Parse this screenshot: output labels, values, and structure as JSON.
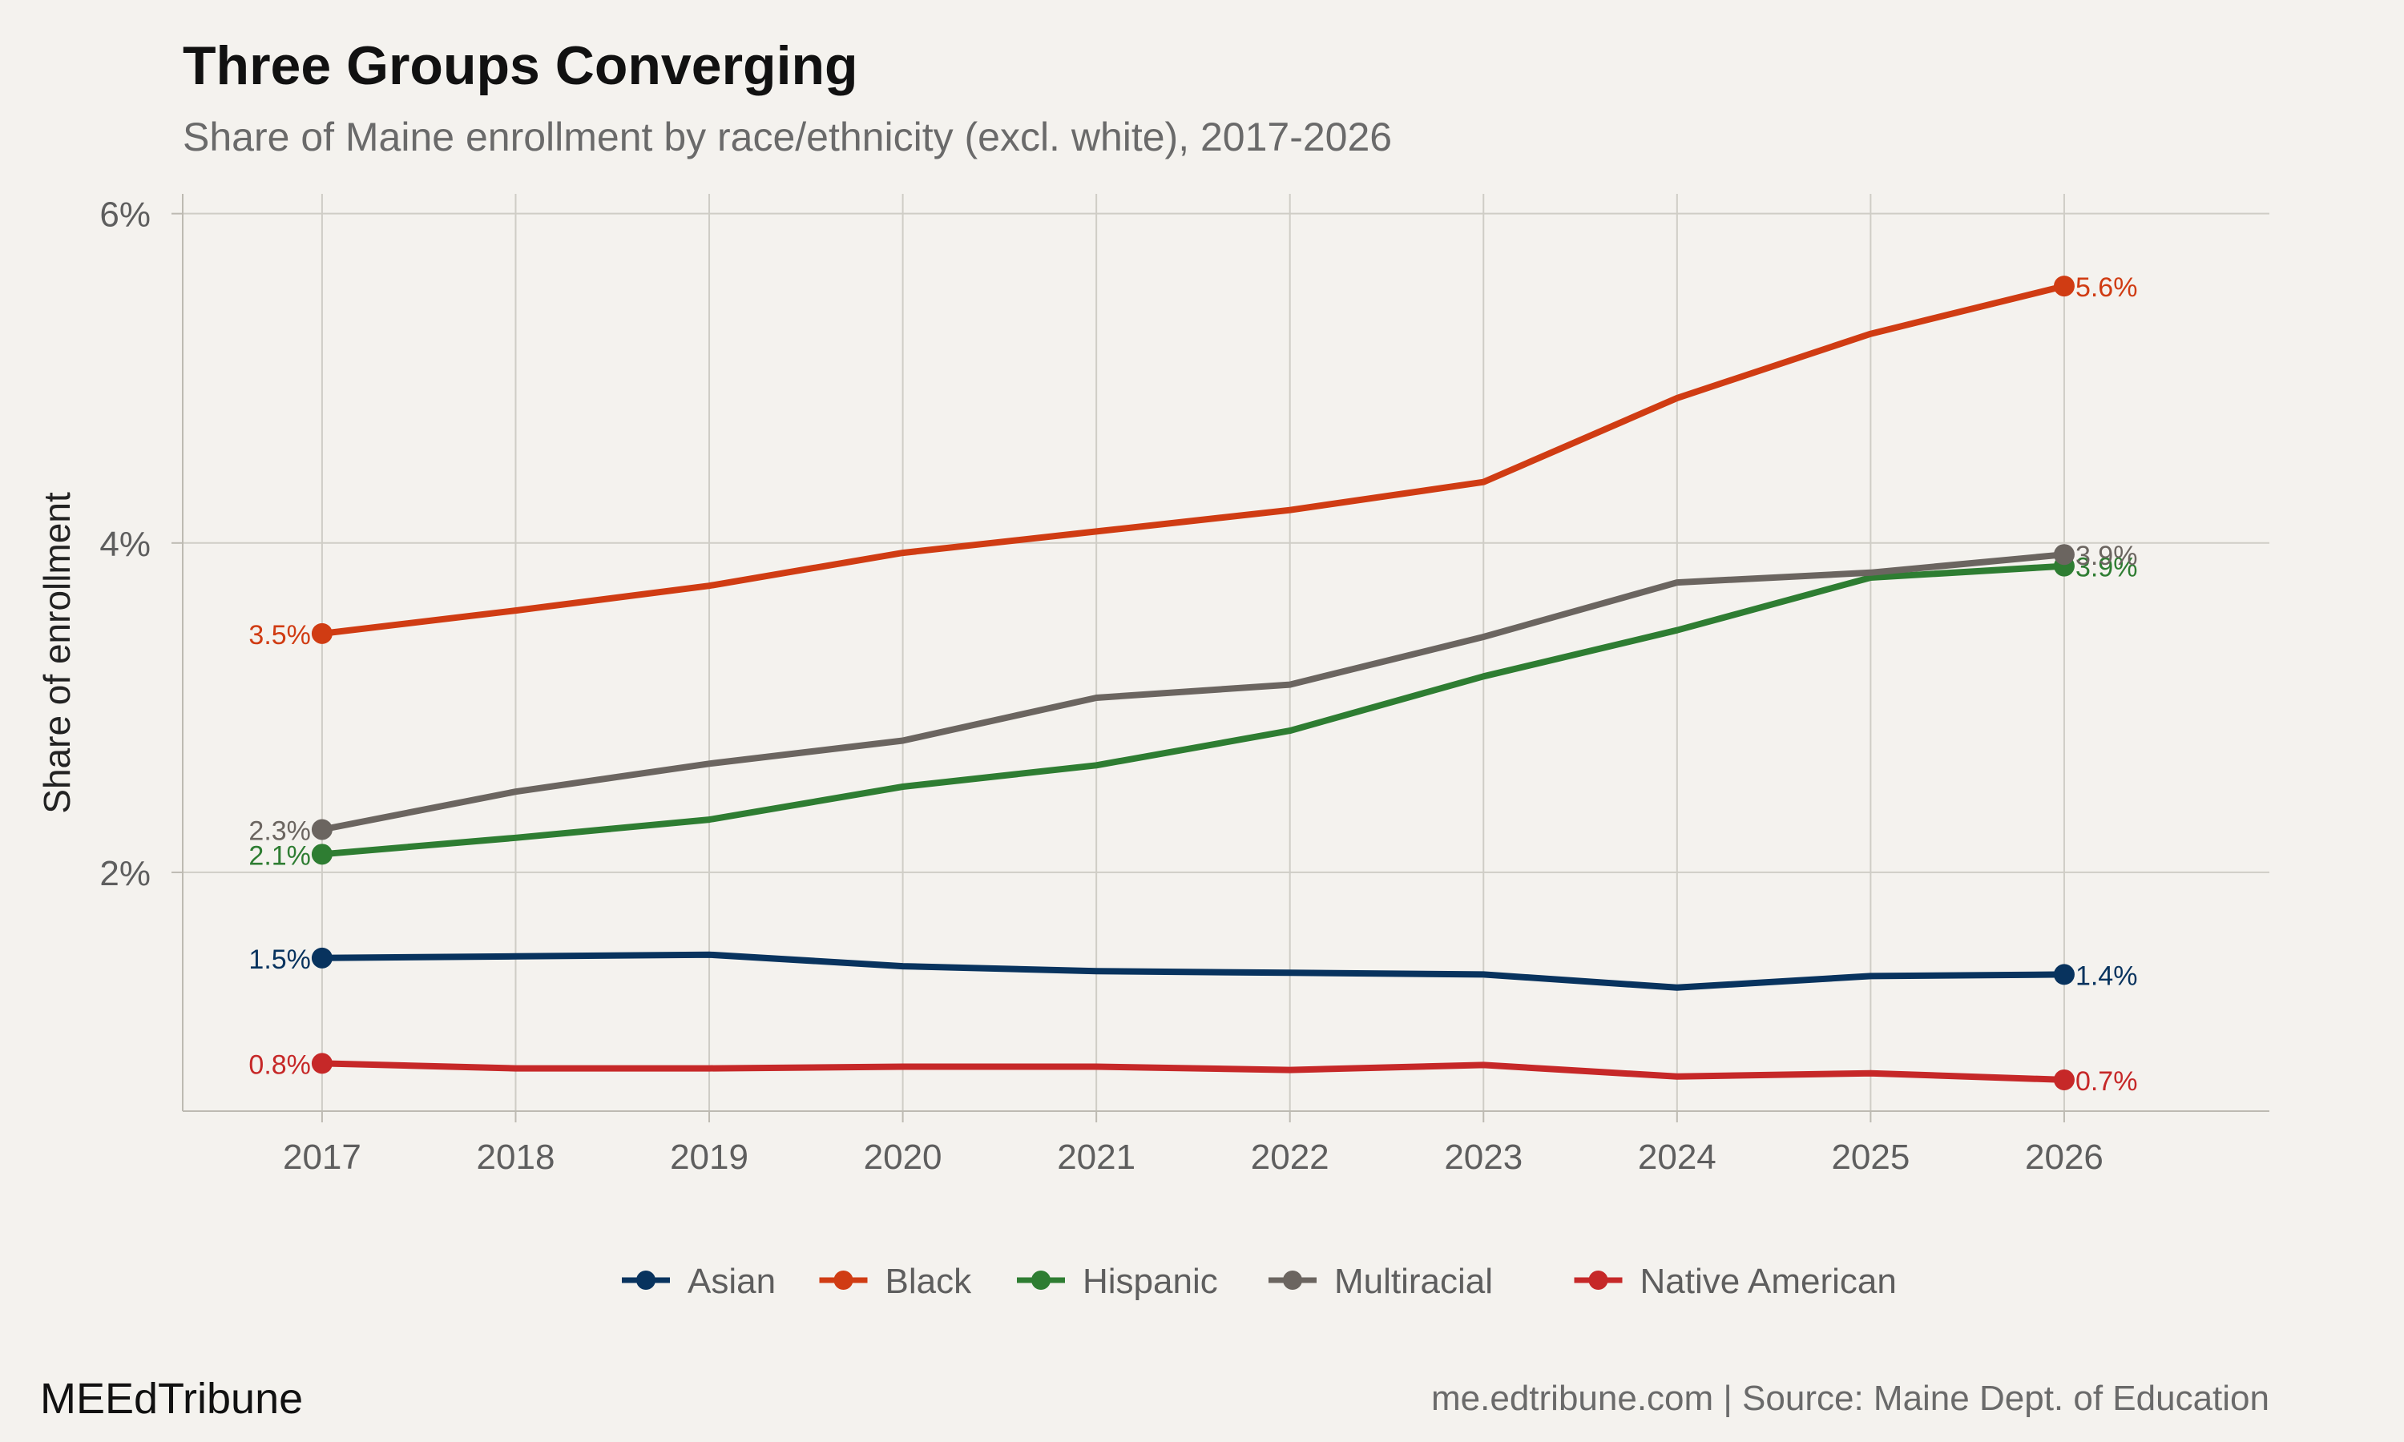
{
  "chart_data": {
    "type": "line",
    "title": "Three Groups Converging",
    "subtitle": "Share of Maine enrollment by race/ethnicity (excl. white), 2017-2026",
    "xlabel": "",
    "ylabel": "Share of enrollment",
    "x": [
      2017,
      2018,
      2019,
      2020,
      2021,
      2022,
      2023,
      2024,
      2025,
      2026
    ],
    "xlim": [
      2016.28,
      2027.06
    ],
    "ylim": [
      0.55,
      6.12
    ],
    "y_ticks": [
      {
        "value": 2,
        "label": "2%"
      },
      {
        "value": 4,
        "label": "4%"
      },
      {
        "value": 6,
        "label": "6%"
      }
    ],
    "grid": true,
    "legend_position": "bottom",
    "series": [
      {
        "name": "Asian",
        "color": "#08335e",
        "values": [
          1.48,
          1.49,
          1.5,
          1.43,
          1.4,
          1.39,
          1.38,
          1.3,
          1.37,
          1.38
        ],
        "start_label": "1.5%",
        "end_label": "1.4%"
      },
      {
        "name": "Black",
        "color": "#d03c13",
        "values": [
          3.45,
          3.59,
          3.74,
          3.94,
          4.07,
          4.2,
          4.37,
          4.88,
          5.27,
          5.56
        ],
        "start_label": "3.5%",
        "end_label": "5.6%"
      },
      {
        "name": "Hispanic",
        "color": "#2e7d32",
        "values": [
          2.11,
          2.21,
          2.32,
          2.52,
          2.65,
          2.86,
          3.19,
          3.47,
          3.79,
          3.86
        ],
        "start_label": "2.1%",
        "end_label": "3.9%"
      },
      {
        "name": "Multiracial",
        "color": "#6b6560",
        "values": [
          2.26,
          2.49,
          2.66,
          2.8,
          3.06,
          3.14,
          3.43,
          3.76,
          3.82,
          3.93
        ],
        "start_label": "2.3%",
        "end_label": "3.9%"
      },
      {
        "name": "Native American",
        "color": "#c62828",
        "values": [
          0.84,
          0.81,
          0.81,
          0.82,
          0.82,
          0.8,
          0.83,
          0.76,
          0.78,
          0.74
        ],
        "start_label": "0.8%",
        "end_label": "0.7%"
      }
    ]
  },
  "footer": {
    "brand": "MEEdTribune",
    "source": "me.edtribune.com | Source: Maine Dept. of Education"
  },
  "colors": {
    "background": "#f4f2ee",
    "gridline": "#cfcdc6",
    "axis_text": "#5e5e5e"
  }
}
